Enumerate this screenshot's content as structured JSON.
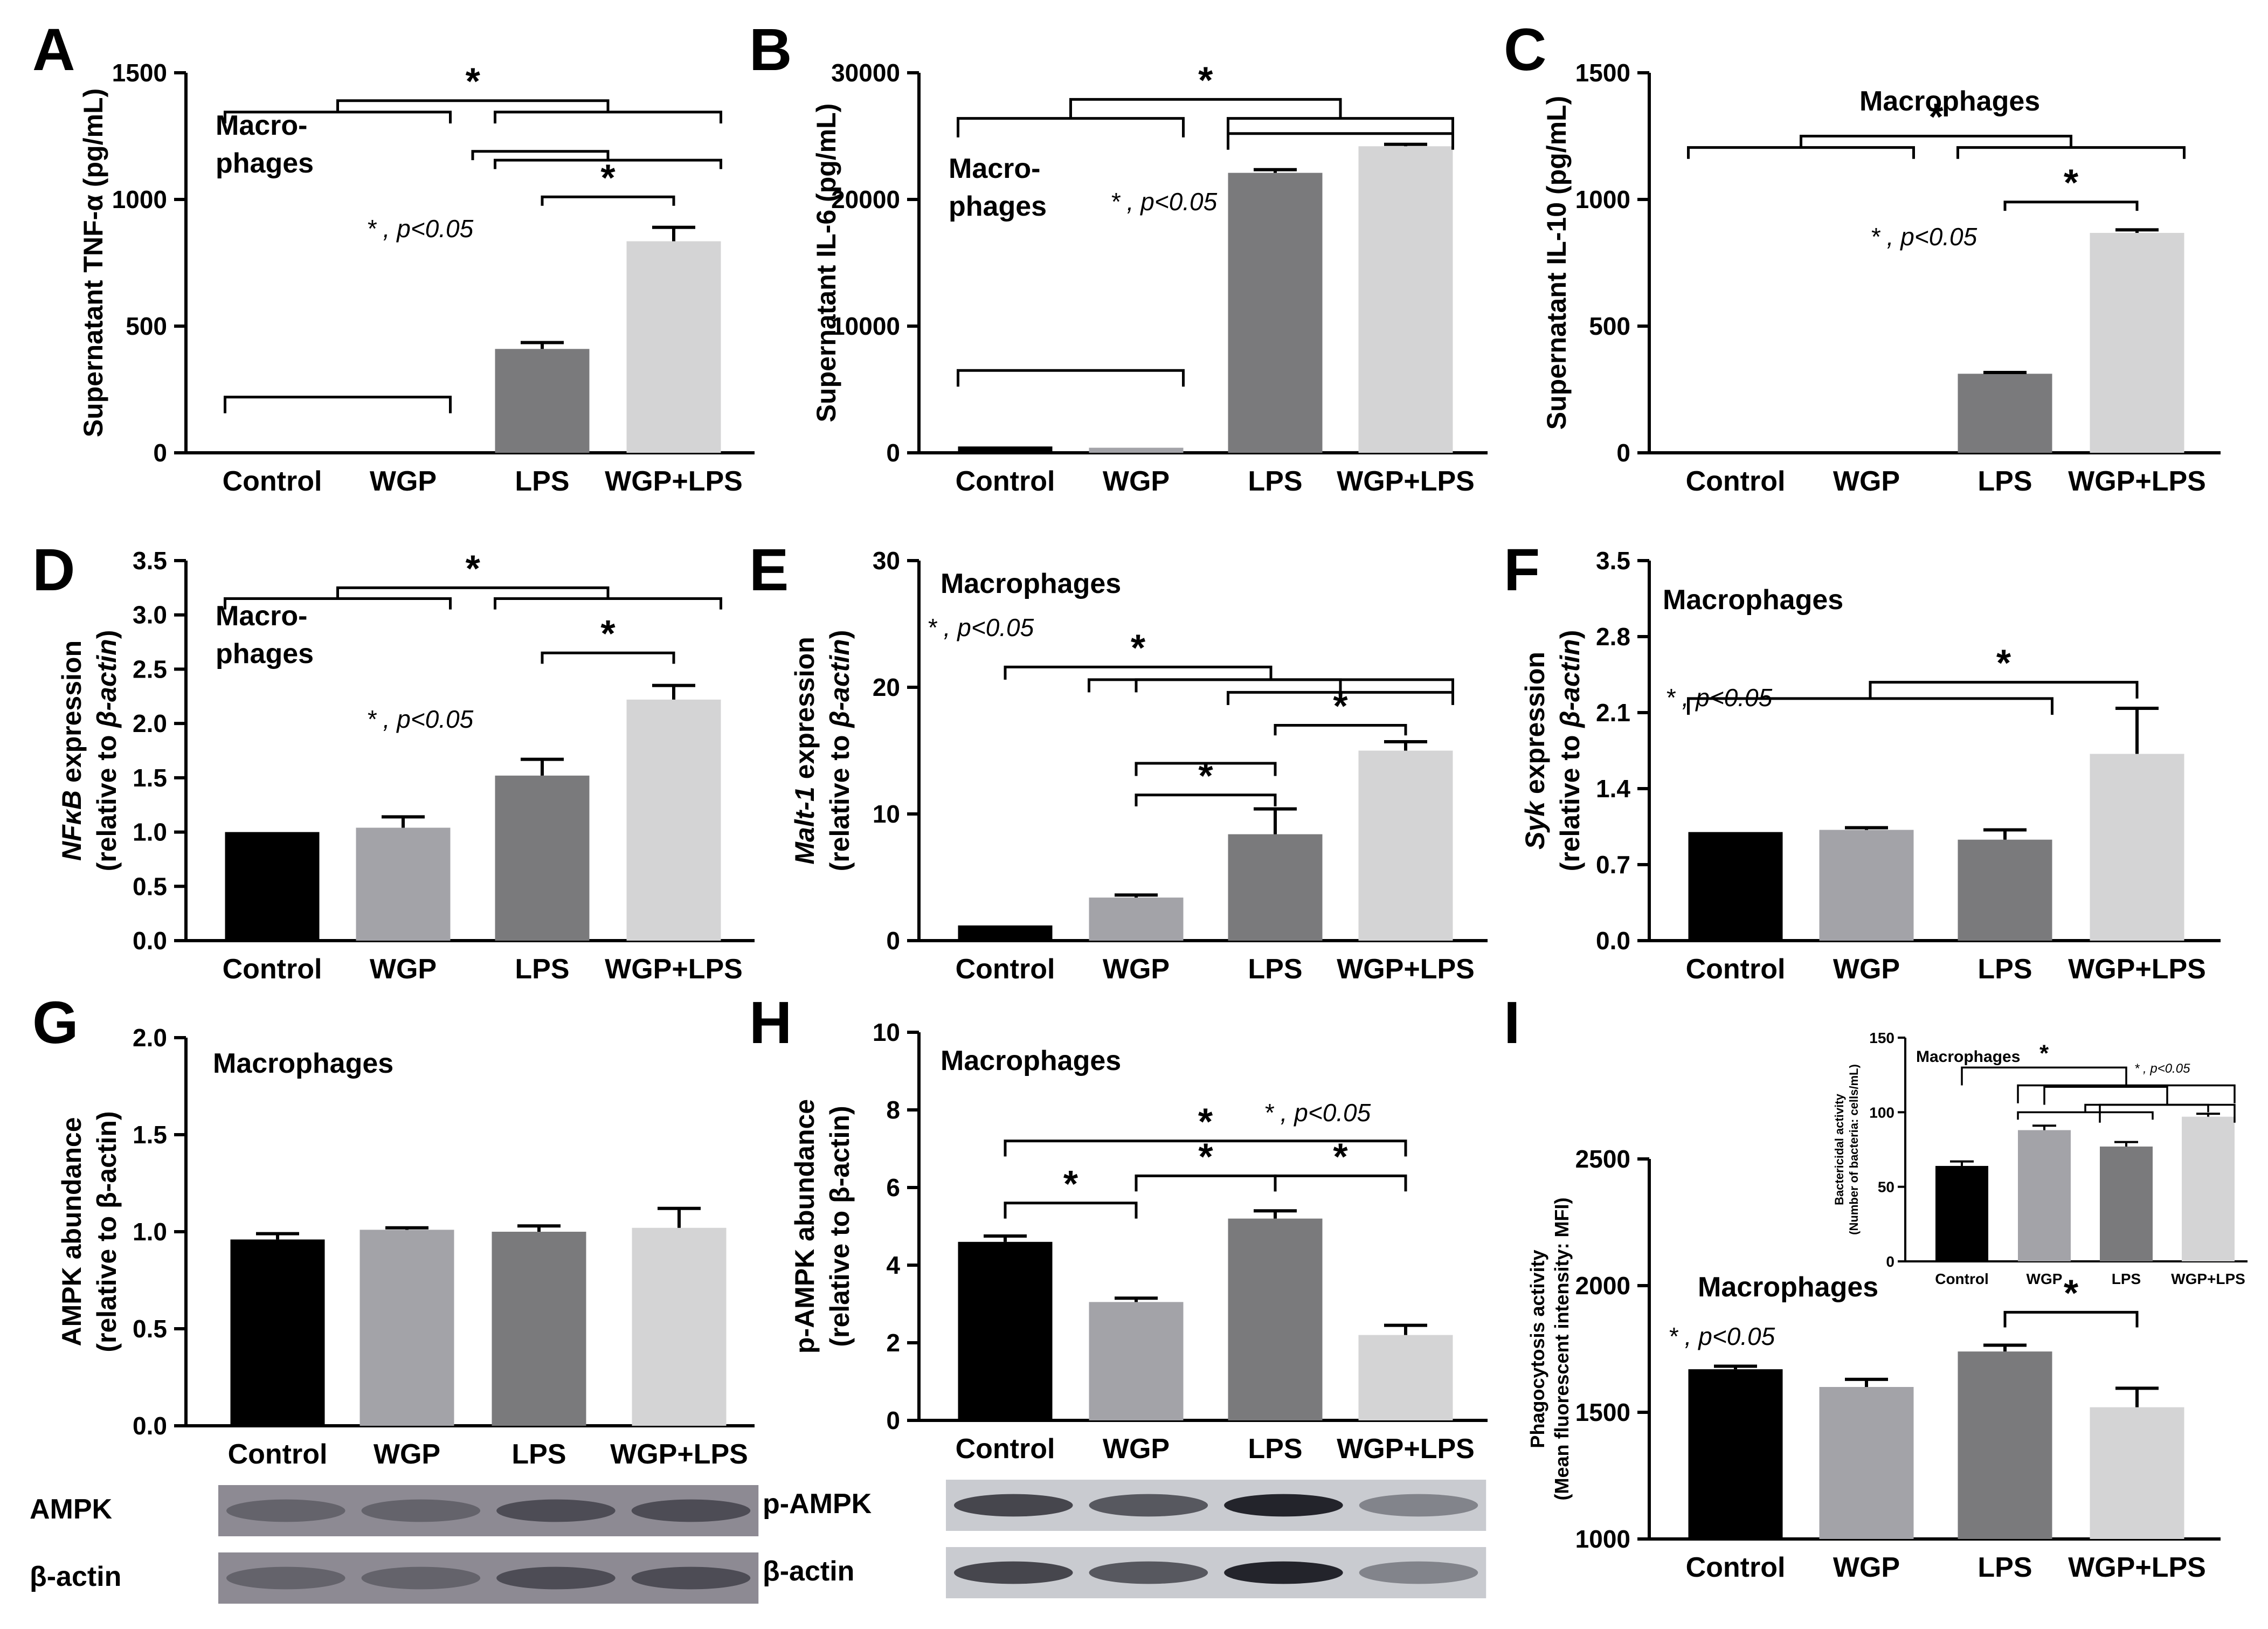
{
  "colors": {
    "Control": "#000000",
    "WGP": "#a3a3a8",
    "LPS": "#7a7a7c",
    "WGP+LPS": "#d4d4d5",
    "axis": "#000000"
  },
  "chart_data": [
    {
      "panel": "A",
      "type": "bar",
      "categories": [
        "Control",
        "WGP",
        "LPS",
        "WGP+LPS"
      ],
      "values": [
        0,
        0,
        410,
        835
      ],
      "errors": [
        0,
        0,
        25,
        55
      ],
      "ylabel": "Supernatant TNF-α  (pg/mL)",
      "ylabel_parts": [],
      "ylim": [
        0,
        1500
      ],
      "yticks": [
        "0",
        "500",
        "1000",
        "1500"
      ],
      "title": "Macro-\nphages",
      "note": "* , p<0.05",
      "brackets": [
        {
          "left": [
            0,
            1
          ],
          "right": [
            2,
            3
          ],
          "level": 1390,
          "drop": 45,
          "star": "*"
        },
        {
          "left": [
            1.5,
            1.5
          ],
          "right": [
            2,
            3
          ],
          "level": 1190,
          "drop": 35,
          "star": ""
        },
        {
          "left": [
            2,
            2
          ],
          "right": [
            3,
            3
          ],
          "level": 1010,
          "drop": 35,
          "star": "*"
        },
        {
          "left": [
            0,
            1
          ],
          "right": [
            0,
            1
          ],
          "level": 220,
          "drop": 0,
          "star": ""
        }
      ]
    },
    {
      "panel": "B",
      "type": "bar",
      "categories": [
        "Control",
        "WGP",
        "LPS",
        "WGP+LPS"
      ],
      "values": [
        500,
        400,
        22100,
        24200
      ],
      "errors": [
        0,
        0,
        250,
        150
      ],
      "ylabel": "Supernatant IL-6  (pg/mL)",
      "ylabel_parts": [],
      "ylim": [
        0,
        30000
      ],
      "yticks": [
        "0",
        "10000",
        "20000",
        "30000"
      ],
      "title": "Macro-\nphages",
      "note": "* , p<0.05",
      "brackets": [
        {
          "left": [
            0,
            1
          ],
          "right": [
            2,
            3
          ],
          "level": 27900,
          "drop": 1500,
          "star": "*"
        },
        {
          "left": [
            0,
            1
          ],
          "right": [
            0,
            1
          ],
          "level": 6500,
          "drop": 0,
          "star": ""
        },
        {
          "left": [
            2,
            3
          ],
          "right": [
            2,
            3
          ],
          "level": 25200,
          "drop": 0,
          "star": ""
        }
      ]
    },
    {
      "panel": "C",
      "type": "bar",
      "categories": [
        "Control",
        "WGP",
        "LPS",
        "WGP+LPS"
      ],
      "values": [
        0,
        0,
        312,
        868
      ],
      "errors": [
        0,
        0,
        5,
        12
      ],
      "ylabel": "Supernatant IL-10  (pg/mL)",
      "ylabel_parts": [],
      "ylim": [
        0,
        1500
      ],
      "yticks": [
        "0",
        "500",
        "1000",
        "1500"
      ],
      "title": "Macrophages",
      "note": "* , p<0.05",
      "brackets": [
        {
          "left": [
            0,
            1
          ],
          "right": [
            2,
            3
          ],
          "level": 1250,
          "drop": 45,
          "star": "*"
        },
        {
          "left": [
            2,
            2
          ],
          "right": [
            3,
            3
          ],
          "level": 990,
          "drop": 35,
          "star": "*"
        }
      ]
    },
    {
      "panel": "D",
      "type": "bar",
      "categories": [
        "Control",
        "WGP",
        "LPS",
        "WGP+LPS"
      ],
      "values": [
        1.0,
        1.04,
        1.52,
        2.22
      ],
      "errors": [
        0,
        0.1,
        0.15,
        0.13
      ],
      "ylabel": "",
      "ylabel_parts": [
        "NFκB",
        " expression",
        "(relative to ",
        "β-actin",
        ")"
      ],
      "ylim": [
        0,
        3.5
      ],
      "yticks": [
        "0.0",
        "0.5",
        "1.0",
        "1.5",
        "2.0",
        "2.5",
        "3.0",
        "3.5"
      ],
      "title": "Macro-\nphages",
      "note": "* , p<0.05",
      "brackets": [
        {
          "left": [
            0,
            1
          ],
          "right": [
            2,
            3
          ],
          "level": 3.25,
          "drop": 0.1,
          "star": "*"
        },
        {
          "left": [
            2,
            2
          ],
          "right": [
            3,
            3
          ],
          "level": 2.65,
          "drop": 0.1,
          "star": "*"
        }
      ]
    },
    {
      "panel": "E",
      "type": "bar",
      "categories": [
        "Control",
        "WGP",
        "LPS",
        "WGP+LPS"
      ],
      "values": [
        1.2,
        3.4,
        8.4,
        15.0
      ],
      "errors": [
        0,
        0.2,
        2.0,
        0.7
      ],
      "ylabel": "",
      "ylabel_parts": [
        "Malt-1",
        " expression",
        "(relative to ",
        "β-actin",
        ")"
      ],
      "ylim": [
        0,
        30
      ],
      "yticks": [
        "0",
        "10",
        "20",
        "30"
      ],
      "title": "Macrophages",
      "note": "* , p<0.05",
      "brackets": [
        {
          "left": [
            0,
            0
          ],
          "right": [
            1,
            3
          ],
          "level": 21.6,
          "drop": 1.0,
          "star": "*"
        },
        {
          "left": [
            1,
            1
          ],
          "right": [
            2,
            3
          ],
          "level": 20.6,
          "drop": 1.0,
          "star": ""
        },
        {
          "left": [
            2,
            2
          ],
          "right": [
            3,
            3
          ],
          "level": 17.0,
          "drop": 0.8,
          "star": "*"
        },
        {
          "left": [
            1,
            1
          ],
          "right": [
            2,
            2
          ],
          "level": 14.0,
          "drop": 1.0,
          "star": ""
        },
        {
          "left": [
            1,
            1
          ],
          "right": [
            2,
            2
          ],
          "level": 11.5,
          "drop": 0.9,
          "star": "*"
        }
      ]
    },
    {
      "panel": "F",
      "type": "bar",
      "categories": [
        "Control",
        "WGP",
        "LPS",
        "WGP+LPS"
      ],
      "values": [
        1.0,
        1.02,
        0.93,
        1.72
      ],
      "errors": [
        0,
        0.02,
        0.09,
        0.42
      ],
      "ylabel": "",
      "ylabel_parts": [
        "Syk",
        " expression",
        "(relative to ",
        "β-actin",
        ")"
      ],
      "ylim": [
        0,
        3.5
      ],
      "yticks": [
        "0.0",
        "0.7",
        "1.4",
        "2.1",
        "2.8",
        "3.5"
      ],
      "title": "Macrophages",
      "note": "* , p<0.05",
      "brackets": [
        {
          "left": [
            0,
            2
          ],
          "right": [
            3,
            3
          ],
          "level": 2.38,
          "drop": 0.15,
          "star": "*"
        }
      ]
    },
    {
      "panel": "G",
      "type": "bar",
      "categories": [
        "Control",
        "WGP",
        "LPS",
        "WGP+LPS"
      ],
      "values": [
        0.96,
        1.01,
        1.0,
        1.02
      ],
      "errors": [
        0.03,
        0.01,
        0.03,
        0.1
      ],
      "ylabel": "",
      "ylabel_parts": [
        "AMPK abundance",
        "",
        "(relative to ",
        "β-actin",
        ")"
      ],
      "ylim": [
        0,
        2.0
      ],
      "yticks": [
        "0.0",
        "0.5",
        "1.0",
        "1.5",
        "2.0"
      ],
      "title": "Macrophages",
      "note": "",
      "brackets": [],
      "blots": [
        "AMPK",
        "β-actin"
      ]
    },
    {
      "panel": "H",
      "type": "bar",
      "categories": [
        "Control",
        "WGP",
        "LPS",
        "WGP+LPS"
      ],
      "values": [
        4.6,
        3.05,
        5.2,
        2.2
      ],
      "errors": [
        0.15,
        0.1,
        0.2,
        0.25
      ],
      "ylabel": "",
      "ylabel_parts": [
        "p-AMPK abundance",
        "",
        "(relative to ",
        "β-actin",
        ")"
      ],
      "ylim": [
        0,
        10
      ],
      "yticks": [
        "0",
        "2",
        "4",
        "6",
        "8",
        "10"
      ],
      "title": "Macrophages",
      "note": "* , p<0.05",
      "brackets": [
        {
          "left": [
            0,
            0
          ],
          "right": [
            3,
            3
          ],
          "level": 7.2,
          "drop": 0.4,
          "star": "*"
        },
        {
          "left": [
            1,
            1
          ],
          "right": [
            2,
            2
          ],
          "level": 6.3,
          "drop": 0.4,
          "star": "*"
        },
        {
          "left": [
            2,
            2
          ],
          "right": [
            3,
            3
          ],
          "level": 6.3,
          "drop": 0.4,
          "star": "*"
        },
        {
          "left": [
            0,
            0
          ],
          "right": [
            1,
            1
          ],
          "level": 5.6,
          "drop": 0.4,
          "star": "*"
        }
      ],
      "blots": [
        "p-AMPK",
        "β-actin"
      ]
    },
    {
      "panel": "I",
      "type": "bar",
      "categories": [
        "Control",
        "WGP",
        "LPS",
        "WGP+LPS"
      ],
      "values": [
        1670,
        1600,
        1740,
        1520
      ],
      "errors": [
        12,
        30,
        25,
        75
      ],
      "ylabel": "",
      "ylabel_parts": [
        "Phagocytosis activity",
        "",
        "(Mean fluorescent intensity: MFI)",
        "",
        ""
      ],
      "ylim": [
        1000,
        2500
      ],
      "yticks": [
        "1000",
        "1500",
        "2000",
        "2500"
      ],
      "title": "Macrophages",
      "note": "* , p<0.05",
      "brackets": [
        {
          "left": [
            2,
            2
          ],
          "right": [
            3,
            3
          ],
          "level": 1895,
          "drop": 60,
          "star": "*"
        }
      ],
      "inset": {
        "type": "bar",
        "categories": [
          "Control",
          "WGP",
          "LPS",
          "WGP+LPS"
        ],
        "values": [
          64,
          88,
          77,
          97
        ],
        "errors": [
          3,
          3,
          3,
          2
        ],
        "ylabel_parts": [
          "Bactericidal activity",
          "(Number of bacteria: cells/mL)"
        ],
        "ylim": [
          0,
          150
        ],
        "yticks": [
          "0",
          "50",
          "100",
          "150"
        ],
        "title": "Macrophages",
        "note": "* , p<0.05",
        "brackets": [
          {
            "left": [
              0,
              0
            ],
            "right": [
              1,
              3
            ],
            "level": 130,
            "drop": 12,
            "star": "*"
          },
          {
            "left": [
              1,
              1
            ],
            "right": [
              2,
              3
            ],
            "level": 117,
            "drop": 12,
            "star": ""
          },
          {
            "left": [
              1,
              2
            ],
            "right": [
              3,
              3
            ],
            "level": 105,
            "drop": 5,
            "star": ""
          }
        ]
      }
    }
  ]
}
